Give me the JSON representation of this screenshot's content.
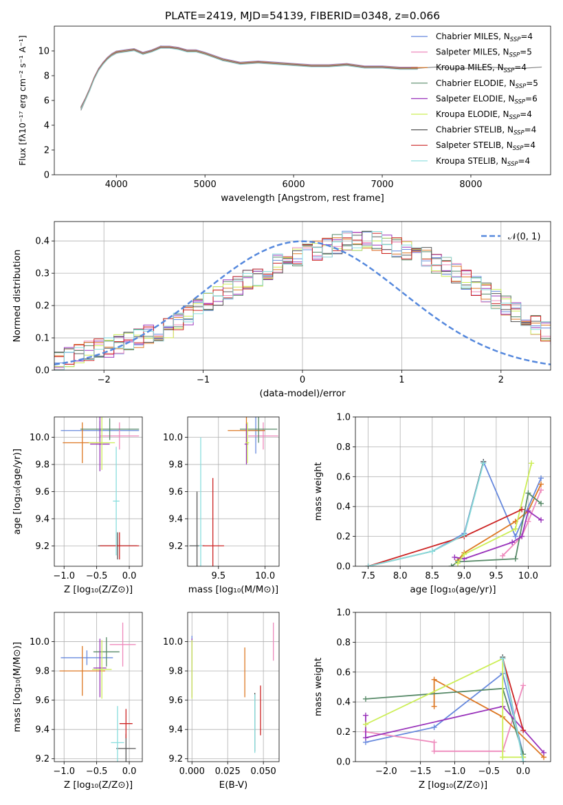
{
  "figure": {
    "title": "PLATE=2419, MJD=54139, FIBERID=0348, z=0.066"
  },
  "chart_data": [
    {
      "id": "spectrum",
      "type": "line",
      "xlabel": "wavelength [Angstrom, rest frame]",
      "ylabel": "Flux [fλ10⁻¹⁷ erg cm⁻² s⁻¹ A⁻¹]",
      "xlim": [
        3300,
        8900
      ],
      "ylim": [
        0,
        12
      ],
      "xticks": [
        4000,
        5000,
        6000,
        7000,
        8000
      ],
      "yticks": [
        0,
        2,
        4,
        6,
        8,
        10
      ],
      "legend_loc": "right",
      "data_color": "#808080",
      "data_x": [
        3600,
        3650,
        3700,
        3750,
        3800,
        3850,
        3900,
        3950,
        4000,
        4100,
        4200,
        4300,
        4400,
        4500,
        4600,
        4700,
        4800,
        4900,
        5000,
        5200,
        5400,
        5600,
        5800,
        6000,
        6200,
        6400,
        6600,
        6800,
        7000,
        7200,
        7400,
        7600,
        7800,
        8000,
        8200,
        8400,
        8600,
        8800
      ],
      "data_y": [
        5.2,
        6.0,
        6.8,
        7.8,
        8.6,
        9.0,
        9.4,
        9.6,
        9.8,
        10.0,
        10.1,
        9.8,
        10.0,
        10.4,
        10.3,
        10.2,
        10.0,
        10.0,
        9.8,
        9.2,
        9.0,
        9.1,
        9.0,
        8.9,
        8.8,
        8.8,
        8.9,
        8.7,
        8.7,
        8.6,
        8.6,
        8.7,
        8.6,
        8.6,
        8.7,
        8.6,
        8.6,
        8.7
      ],
      "model_x": [
        3600,
        3650,
        3700,
        3750,
        3800,
        3850,
        3900,
        3950,
        4000,
        4100,
        4200,
        4300,
        4400,
        4500,
        4600,
        4700,
        4800,
        4900,
        5000,
        5200,
        5400,
        5600,
        5800,
        6000,
        6200,
        6400,
        6600,
        6800,
        7000,
        7200,
        7400
      ],
      "model_y": [
        5.4,
        6.1,
        6.9,
        7.8,
        8.5,
        9.0,
        9.4,
        9.7,
        9.9,
        10.0,
        10.1,
        9.8,
        10.0,
        10.3,
        10.3,
        10.2,
        10.0,
        10.0,
        9.8,
        9.3,
        9.0,
        9.1,
        9.0,
        8.9,
        8.8,
        8.8,
        8.9,
        8.7,
        8.7,
        8.6,
        8.6
      ],
      "series": [
        {
          "name": "Chabrier MILES, N$_{SSP}$=4",
          "label_main": "Chabrier MILES, N",
          "label_sub": "SSP",
          "label_end": "=4",
          "color": "#6688dd"
        },
        {
          "name": "Salpeter MILES, N$_{SSP}$=5",
          "label_main": "Salpeter MILES, N",
          "label_sub": "SSP",
          "label_end": "=5",
          "color": "#ee88bb"
        },
        {
          "name": "Kroupa MILES, N$_{SSP}$=4",
          "label_main": "Kroupa MILES, N",
          "label_sub": "SSP",
          "label_end": "=4",
          "color": "#dd7722"
        },
        {
          "name": "Chabrier ELODIE, N$_{SSP}$=5",
          "label_main": "Chabrier ELODIE, N",
          "label_sub": "SSP",
          "label_end": "=5",
          "color": "#558866"
        },
        {
          "name": "Salpeter ELODIE, N$_{SSP}$=6",
          "label_main": "Salpeter ELODIE, N",
          "label_sub": "SSP",
          "label_end": "=6",
          "color": "#9933bb"
        },
        {
          "name": "Kroupa ELODIE, N$_{SSP}$=4",
          "label_main": "Kroupa ELODIE, N",
          "label_sub": "SSP",
          "label_end": "=4",
          "color": "#ccee55"
        },
        {
          "name": "Chabrier STELIB, N$_{SSP}$=4",
          "label_main": "Chabrier STELIB, N",
          "label_sub": "SSP",
          "label_end": "=4",
          "color": "#555555"
        },
        {
          "name": "Salpeter STELIB, N$_{SSP}$=4",
          "label_main": "Salpeter STELIB, N",
          "label_sub": "SSP",
          "label_end": "=4",
          "color": "#cc2222"
        },
        {
          "name": "Kroupa STELIB, N$_{SSP}$=4",
          "label_main": "Kroupa STELIB, N",
          "label_sub": "SSP",
          "label_end": "=4",
          "color": "#88dddd"
        }
      ]
    },
    {
      "id": "residuals",
      "type": "line",
      "xlabel": "(data-model)/error",
      "ylabel": "Normed distribution",
      "xlim": [
        -2.5,
        2.5
      ],
      "ylim": [
        0,
        0.46
      ],
      "xticks": [
        -2,
        -1,
        0,
        1,
        2
      ],
      "yticks": [
        0.0,
        0.1,
        0.2,
        0.3,
        0.4
      ],
      "grid": true,
      "legend_loc": "top-right",
      "legend_label": "𝒩(0, 1)",
      "gauss_color": "#5588dd",
      "hist_bin_width": 0.1,
      "hist_values": [
        0.03,
        0.04,
        0.05,
        0.06,
        0.07,
        0.07,
        0.08,
        0.09,
        0.1,
        0.11,
        0.12,
        0.13,
        0.15,
        0.17,
        0.19,
        0.21,
        0.23,
        0.25,
        0.26,
        0.28,
        0.29,
        0.31,
        0.33,
        0.34,
        0.35,
        0.36,
        0.37,
        0.38,
        0.39,
        0.4,
        0.4,
        0.4,
        0.4,
        0.39,
        0.38,
        0.37,
        0.36,
        0.35,
        0.33,
        0.32,
        0.3,
        0.28,
        0.26,
        0.24,
        0.22,
        0.2,
        0.18,
        0.16,
        0.14,
        0.12,
        0.11,
        0.1,
        0.09,
        0.08,
        0.07,
        0.06,
        0.06,
        0.05,
        0.05,
        0.04
      ]
    },
    {
      "id": "age-vs-Z",
      "type": "scatter",
      "xlabel": "Z [log₁₀(Z/Z⊙)]",
      "ylabel": "age  [log₁₀(age/yr)]",
      "xlim": [
        -1.15,
        0.2
      ],
      "ylim": [
        9.05,
        10.15
      ],
      "xticks": [
        -1.0,
        -0.5,
        0.0
      ],
      "yticks": [
        9.2,
        9.4,
        9.6,
        9.8,
        10.0
      ],
      "grid": true,
      "points": [
        {
          "x": -0.45,
          "y": 10.05,
          "xerr": 0.6,
          "yerr": 0.07,
          "color": "#6688dd"
        },
        {
          "x": -0.15,
          "y": 10.01,
          "xerr": 0.3,
          "yerr": 0.1,
          "color": "#ee88bb"
        },
        {
          "x": -0.72,
          "y": 9.96,
          "xerr": 0.3,
          "yerr": 0.15,
          "color": "#dd7722"
        },
        {
          "x": -0.3,
          "y": 10.06,
          "xerr": 0.45,
          "yerr": 0.08,
          "color": "#558866"
        },
        {
          "x": -0.45,
          "y": 9.95,
          "xerr": 0.15,
          "yerr": 0.2,
          "color": "#9933bb"
        },
        {
          "x": -0.42,
          "y": 9.96,
          "xerr": 0.2,
          "yerr": 0.2,
          "color": "#ccee55"
        },
        {
          "x": -0.18,
          "y": 9.2,
          "xerr": 0.3,
          "yerr": 0.1,
          "color": "#555555"
        },
        {
          "x": -0.15,
          "y": 9.2,
          "xerr": 0.3,
          "yerr": 0.1,
          "color": "#cc2222"
        },
        {
          "x": -0.2,
          "y": 9.53,
          "xerr": 0.05,
          "yerr": 0.4,
          "color": "#88dddd"
        }
      ]
    },
    {
      "id": "age-vs-mass",
      "type": "scatter",
      "xlabel": "mass [log₁₀(M/M⊙)]",
      "ylabel": "",
      "xlim": [
        9.17,
        10.15
      ],
      "ylim": [
        9.05,
        10.15
      ],
      "xticks": [
        9.5,
        10.0
      ],
      "yticks": [
        9.2,
        9.4,
        9.6,
        9.8,
        10.0
      ],
      "grid": true,
      "points": [
        {
          "x": 9.9,
          "y": 10.05,
          "xerr": 0.1,
          "yerr": 0.17,
          "color": "#6688dd"
        },
        {
          "x": 9.98,
          "y": 10.01,
          "xerr": 0.16,
          "yerr": 0.1,
          "color": "#ee88bb"
        },
        {
          "x": 9.8,
          "y": 10.05,
          "xerr": 0.2,
          "yerr": 0.1,
          "color": "#dd7722"
        },
        {
          "x": 9.93,
          "y": 10.06,
          "xerr": 0.2,
          "yerr": 0.1,
          "color": "#558866"
        },
        {
          "x": 9.8,
          "y": 9.95,
          "xerr": 0.02,
          "yerr": 0.15,
          "color": "#9933bb"
        },
        {
          "x": 9.81,
          "y": 9.96,
          "xerr": 0.02,
          "yerr": 0.15,
          "color": "#ccee55"
        },
        {
          "x": 9.27,
          "y": 9.2,
          "xerr": 0.08,
          "yerr": 0.4,
          "color": "#555555"
        },
        {
          "x": 9.44,
          "y": 9.2,
          "xerr": 0.12,
          "yerr": 0.5,
          "color": "#cc2222"
        },
        {
          "x": 9.31,
          "y": 9.2,
          "xerr": 0.02,
          "yerr": 0.8,
          "color": "#88dddd"
        }
      ]
    },
    {
      "id": "weight-vs-age",
      "type": "line",
      "xlabel": "age  [log₁₀(age/yr)]",
      "ylabel": "mass weight",
      "xlim": [
        7.3,
        10.35
      ],
      "ylim": [
        0,
        1
      ],
      "xticks": [
        7.5,
        8.0,
        8.5,
        9.0,
        9.5,
        10.0
      ],
      "yticks": [
        0.0,
        0.2,
        0.4,
        0.6,
        0.8,
        1.0
      ],
      "grid": true,
      "series": [
        {
          "color": "#6688dd",
          "x": [
            8.5,
            9.0,
            9.3,
            9.8,
            10.2
          ],
          "y": [
            0.1,
            0.22,
            0.7,
            0.2,
            0.59
          ]
        },
        {
          "color": "#ee88bb",
          "x": [
            9.6,
            9.9,
            10.0,
            10.2
          ],
          "y": [
            0.07,
            0.2,
            0.3,
            0.51
          ]
        },
        {
          "color": "#dd7722",
          "x": [
            8.9,
            9.0,
            9.8,
            10.0,
            10.2
          ],
          "y": [
            0.04,
            0.09,
            0.3,
            0.37,
            0.55
          ]
        },
        {
          "color": "#558866",
          "x": [
            8.8,
            8.9,
            9.8,
            10.0,
            10.2
          ],
          "y": [
            0.0,
            0.03,
            0.05,
            0.49,
            0.42
          ]
        },
        {
          "color": "#9933bb",
          "x": [
            8.85,
            9.0,
            9.75,
            9.9,
            10.0,
            10.2
          ],
          "y": [
            0.06,
            0.05,
            0.16,
            0.2,
            0.37,
            0.31
          ]
        },
        {
          "color": "#ccee55",
          "x": [
            8.9,
            9.0,
            9.8,
            10.05
          ],
          "y": [
            0.02,
            0.08,
            0.25,
            0.69
          ]
        },
        {
          "color": "#555555",
          "x": [
            7.5,
            8.5,
            9.0,
            9.3
          ],
          "y": [
            0.0,
            0.1,
            0.21,
            0.7
          ]
        },
        {
          "color": "#cc2222",
          "x": [
            7.5,
            9.0,
            9.9
          ],
          "y": [
            0.0,
            0.2,
            0.38
          ]
        },
        {
          "color": "#88dddd",
          "x": [
            7.5,
            8.5,
            9.0,
            9.3
          ],
          "y": [
            0.0,
            0.1,
            0.21,
            0.69
          ]
        }
      ]
    },
    {
      "id": "mass-vs-Z",
      "type": "scatter",
      "xlabel": "Z [log₁₀(Z/Z⊙)]",
      "ylabel": "mass [log₁₀(M/M⊙)]",
      "xlim": [
        -1.15,
        0.2
      ],
      "ylim": [
        9.18,
        10.2
      ],
      "xticks": [
        -1.0,
        -0.5,
        0.0
      ],
      "yticks": [
        9.2,
        9.4,
        9.6,
        9.8,
        10.0
      ],
      "grid": true,
      "points": [
        {
          "x": -0.65,
          "y": 9.89,
          "xerr": 0.4,
          "yerr": 0.05,
          "color": "#6688dd"
        },
        {
          "x": -0.1,
          "y": 9.98,
          "xerr": 0.2,
          "yerr": 0.15,
          "color": "#ee88bb"
        },
        {
          "x": -0.72,
          "y": 9.8,
          "xerr": 0.35,
          "yerr": 0.17,
          "color": "#dd7722"
        },
        {
          "x": -0.35,
          "y": 9.93,
          "xerr": 0.2,
          "yerr": 0.1,
          "color": "#558866"
        },
        {
          "x": -0.45,
          "y": 9.82,
          "xerr": 0.1,
          "yerr": 0.2,
          "color": "#9933bb"
        },
        {
          "x": -0.42,
          "y": 9.81,
          "xerr": 0.15,
          "yerr": 0.2,
          "color": "#ccee55"
        },
        {
          "x": -0.05,
          "y": 9.27,
          "xerr": 0.15,
          "yerr": 0.1,
          "color": "#555555"
        },
        {
          "x": -0.05,
          "y": 9.44,
          "xerr": 0.1,
          "yerr": 0.1,
          "color": "#cc2222"
        },
        {
          "x": -0.18,
          "y": 9.31,
          "xerr": 0.1,
          "yerr": 0.25,
          "color": "#88dddd"
        }
      ]
    },
    {
      "id": "mass-vs-ebv",
      "type": "scatter",
      "xlabel": "E(B-V)",
      "ylabel": "",
      "xlim": [
        -0.003,
        0.061
      ],
      "ylim": [
        9.18,
        10.2
      ],
      "xticks": [
        0.0,
        0.025,
        0.05
      ],
      "tick_labels": [
        "0.000",
        "0.025",
        "0.050"
      ],
      "yticks": [
        9.2,
        9.4,
        9.6,
        9.8,
        10.0
      ],
      "grid": true,
      "points": [
        {
          "x": 0.0,
          "y": 9.89,
          "xerr": 0,
          "yerr": 0.15,
          "color": "#6688dd"
        },
        {
          "x": 0.057,
          "y": 10.0,
          "xerr": 0,
          "yerr": 0.13,
          "color": "#ee88bb"
        },
        {
          "x": 0.037,
          "y": 9.79,
          "xerr": 0,
          "yerr": 0.17,
          "color": "#dd7722"
        },
        {
          "x": 0.0,
          "y": 9.93,
          "xerr": 0,
          "yerr": 0.08,
          "color": "#558866"
        },
        {
          "x": 0.0,
          "y": 9.82,
          "xerr": 0,
          "yerr": 0.2,
          "color": "#9933bb"
        },
        {
          "x": 0.0,
          "y": 9.81,
          "xerr": 0,
          "yerr": 0.2,
          "color": "#ccee55"
        },
        {
          "x": 0.044,
          "y": 9.45,
          "xerr": 0,
          "yerr": 0.2,
          "color": "#555555"
        },
        {
          "x": 0.048,
          "y": 9.53,
          "xerr": 0,
          "yerr": 0.17,
          "color": "#cc2222"
        },
        {
          "x": 0.044,
          "y": 9.44,
          "xerr": 0,
          "yerr": 0.2,
          "color": "#88dddd"
        }
      ]
    },
    {
      "id": "weight-vs-Z",
      "type": "line",
      "xlabel": "Z [log₁₀(Z/Z⊙)]",
      "ylabel": "mass weight",
      "xlim": [
        -2.45,
        0.4
      ],
      "ylim": [
        0,
        1
      ],
      "xticks": [
        -2.0,
        -1.5,
        -1.0,
        -0.5,
        0.0
      ],
      "yticks": [
        0.0,
        0.2,
        0.4,
        0.6,
        0.8,
        1.0
      ],
      "grid": true,
      "series": [
        {
          "color": "#6688dd",
          "x": [
            -2.3,
            -1.3,
            -0.3,
            0.0
          ],
          "y": [
            0.13,
            0.23,
            0.59,
            0.05
          ]
        },
        {
          "color": "#ee88bb",
          "x": [
            -2.3,
            -1.3,
            -1.3,
            -0.3,
            0.0
          ],
          "y": [
            0.2,
            0.13,
            0.07,
            0.07,
            0.51
          ]
        },
        {
          "color": "#dd7722",
          "x": [
            -1.3,
            -1.3,
            -0.3,
            0.3
          ],
          "y": [
            0.37,
            0.55,
            0.3,
            0.03
          ]
        },
        {
          "color": "#558866",
          "x": [
            -2.3,
            -0.3,
            0.0,
            0.0
          ],
          "y": [
            0.42,
            0.49,
            0.05,
            0.03
          ]
        },
        {
          "color": "#9933bb",
          "x": [
            -2.3,
            -2.3,
            -0.3,
            0.3
          ],
          "y": [
            0.31,
            0.16,
            0.37,
            0.06
          ]
        },
        {
          "color": "#ccee55",
          "x": [
            -2.3,
            -0.3,
            -0.3,
            0.0
          ],
          "y": [
            0.25,
            0.69,
            0.03,
            0.03
          ]
        },
        {
          "color": "#555555",
          "x": [
            -0.3,
            0.0
          ],
          "y": [
            0.7,
            0.0
          ]
        },
        {
          "color": "#cc2222",
          "x": [
            -0.3,
            0.0
          ],
          "y": [
            0.69,
            0.21
          ]
        },
        {
          "color": "#88dddd",
          "x": [
            -0.3,
            0.0
          ],
          "y": [
            0.69,
            0.0
          ]
        }
      ]
    }
  ]
}
